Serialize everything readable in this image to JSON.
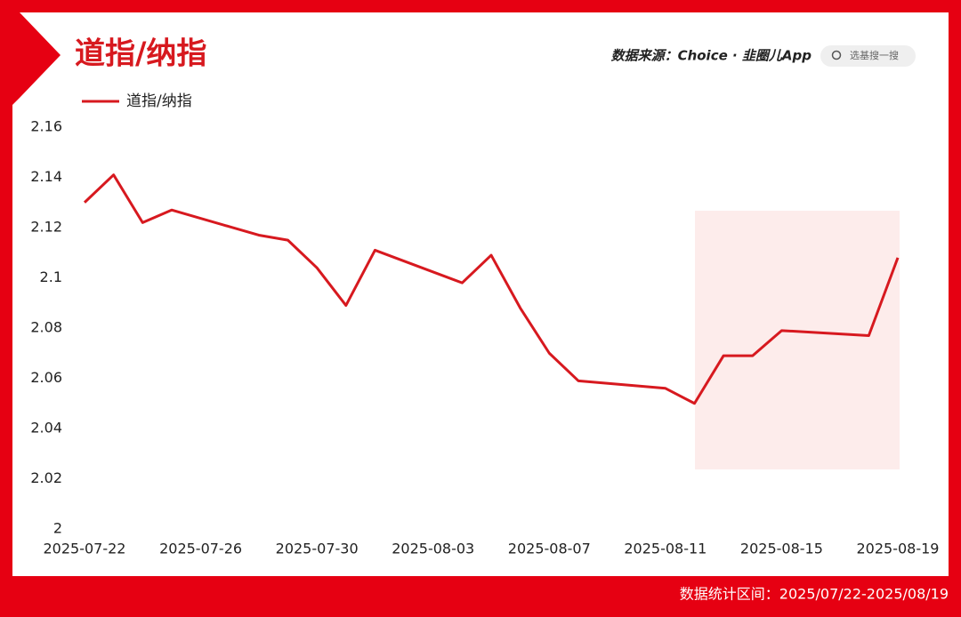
{
  "chart_data": {
    "type": "line",
    "title": "道指/纳指",
    "source": "数据来源：Choice · 韭圈儿App",
    "search": "选基搜一搜",
    "footer": "数据统计区间：2025/07/22-2025/08/19",
    "x": [
      "2025-07-22",
      "2025-07-23",
      "2025-07-24",
      "2025-07-25",
      "2025-07-28",
      "2025-07-29",
      "2025-07-30",
      "2025-07-31",
      "2025-08-01",
      "2025-08-04",
      "2025-08-05",
      "2025-08-06",
      "2025-08-07",
      "2025-08-08",
      "2025-08-11",
      "2025-08-12",
      "2025-08-13",
      "2025-08-14",
      "2025-08-15",
      "2025-08-18",
      "2025-08-19"
    ],
    "series": [
      {
        "name": "道指/纳指",
        "color": "#d7191f",
        "values": [
          2.13,
          2.141,
          2.122,
          2.127,
          2.117,
          2.115,
          2.104,
          2.089,
          2.111,
          2.098,
          2.109,
          2.088,
          2.07,
          2.059,
          2.056,
          2.05,
          2.069,
          2.069,
          2.079,
          2.077,
          2.108
        ]
      }
    ],
    "xlim": [
      "2025-07-22",
      "2025-08-19"
    ],
    "xticks": [
      "2025-07-22",
      "2025-07-26",
      "2025-07-30",
      "2025-08-03",
      "2025-08-07",
      "2025-08-11",
      "2025-08-15",
      "2025-08-19"
    ],
    "ylim": [
      2,
      2.16
    ],
    "yticks": [
      2,
      2.02,
      2.04,
      2.06,
      2.08,
      2.1,
      2.12,
      2.14,
      2.16
    ],
    "legend": "top-left"
  }
}
